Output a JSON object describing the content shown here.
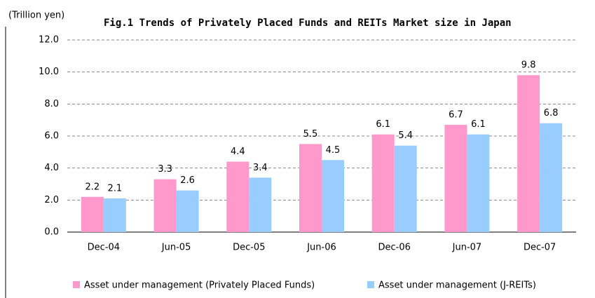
{
  "chart_data": {
    "type": "bar",
    "title": "Fig.1 Trends of Privately Placed Funds and REITs Market size in Japan",
    "y_label": "(Trillion yen)",
    "categories": [
      "Dec-04",
      "Jun-05",
      "Dec-05",
      "Jun-06",
      "Dec-06",
      "Jun-07",
      "Dec-07"
    ],
    "series": [
      {
        "name": "Asset under management (Privately Placed Funds)",
        "color": "#ff99cc",
        "values": [
          2.2,
          3.3,
          4.4,
          5.5,
          6.1,
          6.7,
          9.8
        ]
      },
      {
        "name": "Asset under management (J-REITs)",
        "color": "#99ccff",
        "values": [
          2.1,
          2.6,
          3.4,
          4.5,
          5.4,
          6.1,
          6.8
        ]
      }
    ],
    "ylim": [
      0,
      12
    ],
    "yticks": [
      {
        "value": 0,
        "label": "0.0"
      },
      {
        "value": 2,
        "label": "2.0"
      },
      {
        "value": 4,
        "label": "4.0"
      },
      {
        "value": 6,
        "label": "6.0"
      },
      {
        "value": 8,
        "label": "8.0"
      },
      {
        "value": 10,
        "label": "10.0"
      },
      {
        "value": 12,
        "label": "12.0"
      }
    ],
    "grid": true
  }
}
